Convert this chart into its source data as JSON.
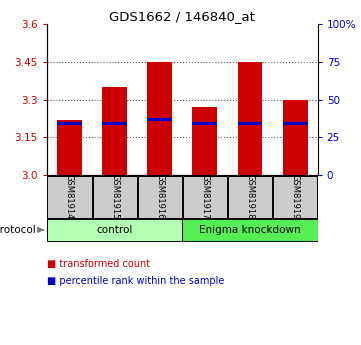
{
  "title": "GDS1662 / 146840_at",
  "samples": [
    "GSM81914",
    "GSM81915",
    "GSM81916",
    "GSM81917",
    "GSM81918",
    "GSM81919"
  ],
  "transformed_counts": [
    3.22,
    3.35,
    3.45,
    3.27,
    3.45,
    3.3
  ],
  "percentile_ranks": [
    3.205,
    3.205,
    3.22,
    3.205,
    3.205,
    3.205
  ],
  "bar_bottom": 3.0,
  "ylim": [
    3.0,
    3.6
  ],
  "yticks": [
    3.0,
    3.15,
    3.3,
    3.45,
    3.6
  ],
  "right_ticks_vals": [
    3.0,
    3.15,
    3.3,
    3.45,
    3.6
  ],
  "right_labels": [
    "0",
    "25",
    "50",
    "75",
    "100%"
  ],
  "groups": [
    {
      "label": "control",
      "indices": [
        0,
        1,
        2
      ],
      "color": "#b3ffb3"
    },
    {
      "label": "Enigma knockdown",
      "indices": [
        3,
        4,
        5
      ],
      "color": "#55ee55"
    }
  ],
  "bar_color": "#cc0000",
  "percentile_color": "#0000cc",
  "tick_label_color_left": "#cc0000",
  "tick_label_color_right": "#0000cc",
  "bg_color": "#ffffff",
  "sample_box_color": "#cccccc",
  "dotted_line_color": "#555555",
  "bar_width": 0.55,
  "legend_red_text": "transformed count",
  "legend_blue_text": "percentile rank within the sample",
  "protocol_text": "protocol"
}
